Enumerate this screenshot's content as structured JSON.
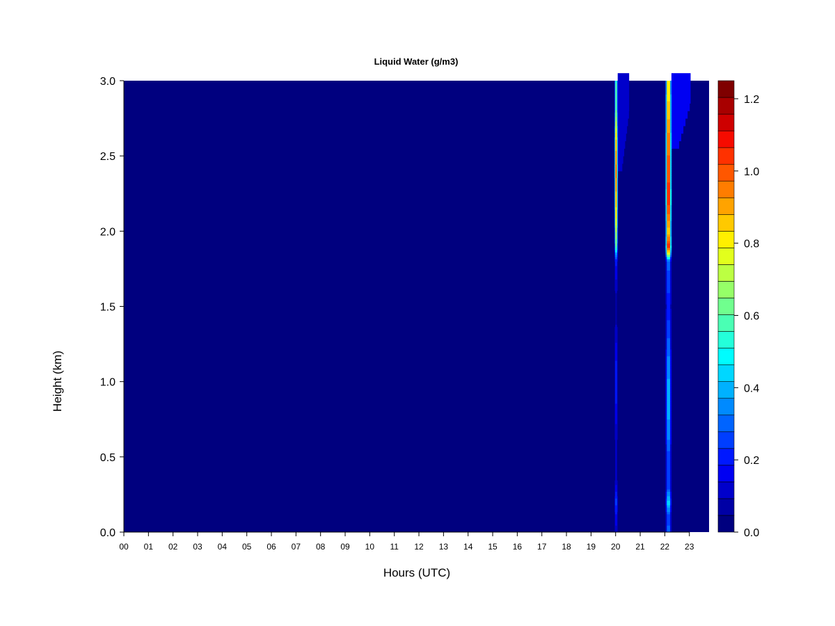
{
  "chart_data": {
    "type": "heatmap",
    "title": "Liquid Water (g/m3)",
    "xlabel": "Hours (UTC)",
    "ylabel": "Height (km)",
    "xlim": [
      0,
      23.8
    ],
    "ylim": [
      0.0,
      3.0
    ],
    "x_ticks": [
      {
        "value": 0,
        "label": "00"
      },
      {
        "value": 1,
        "label": "01"
      },
      {
        "value": 2,
        "label": "02"
      },
      {
        "value": 3,
        "label": "03"
      },
      {
        "value": 4,
        "label": "04"
      },
      {
        "value": 5,
        "label": "05"
      },
      {
        "value": 6,
        "label": "06"
      },
      {
        "value": 7,
        "label": "07"
      },
      {
        "value": 8,
        "label": "08"
      },
      {
        "value": 9,
        "label": "09"
      },
      {
        "value": 10,
        "label": "10"
      },
      {
        "value": 11,
        "label": "11"
      },
      {
        "value": 12,
        "label": "12"
      },
      {
        "value": 13,
        "label": "13"
      },
      {
        "value": 14,
        "label": "14"
      },
      {
        "value": 15,
        "label": "15"
      },
      {
        "value": 16,
        "label": "16"
      },
      {
        "value": 17,
        "label": "17"
      },
      {
        "value": 18,
        "label": "18"
      },
      {
        "value": 19,
        "label": "19"
      },
      {
        "value": 20,
        "label": "20"
      },
      {
        "value": 21,
        "label": "21"
      },
      {
        "value": 22,
        "label": "22"
      },
      {
        "value": 23,
        "label": "23"
      }
    ],
    "y_ticks": [
      {
        "value": 0.0,
        "label": "0.0"
      },
      {
        "value": 0.5,
        "label": "0.5"
      },
      {
        "value": 1.0,
        "label": "1.0"
      },
      {
        "value": 1.5,
        "label": "1.5"
      },
      {
        "value": 2.0,
        "label": "2.0"
      },
      {
        "value": 2.5,
        "label": "2.5"
      },
      {
        "value": 3.0,
        "label": "3.0"
      }
    ],
    "colorbar": {
      "min": 0.0,
      "max": 1.25,
      "step": 0.05,
      "ticks": [
        {
          "value": 0.0,
          "label": "0.0"
        },
        {
          "value": 0.2,
          "label": "0.2"
        },
        {
          "value": 0.4,
          "label": "0.4"
        },
        {
          "value": 0.6,
          "label": "0.6"
        },
        {
          "value": 0.8,
          "label": "0.8"
        },
        {
          "value": 1.0,
          "label": "1.0"
        },
        {
          "value": 1.2,
          "label": "1.2"
        }
      ],
      "colors": [
        "#00007f",
        "#0000a5",
        "#0000cb",
        "#0000f2",
        "#0018ff",
        "#003eff",
        "#0064ff",
        "#008aff",
        "#00b1ff",
        "#00d7ff",
        "#00fdfe",
        "#24ffda",
        "#4affb4",
        "#70ff8e",
        "#96ff68",
        "#bcff42",
        "#e2ff1c",
        "#ffef00",
        "#ffc900",
        "#ffa300",
        "#ff7d00",
        "#ff5700",
        "#ff3100",
        "#f60b00",
        "#ce0000",
        "#a80000",
        "#7f0000"
      ]
    },
    "background_value": 0.0,
    "features": [
      {
        "name": "cloud band near 20 UTC",
        "x_center": 20.02,
        "width_hours": 0.13,
        "profile": [
          {
            "height": 0.0,
            "value": 0.1
          },
          {
            "height": 0.2,
            "value": 0.25
          },
          {
            "height": 0.35,
            "value": 0.1
          },
          {
            "height": 0.6,
            "value": 0.1
          },
          {
            "height": 0.9,
            "value": 0.2
          },
          {
            "height": 1.1,
            "value": 0.2
          },
          {
            "height": 1.5,
            "value": 0.05
          },
          {
            "height": 1.8,
            "value": 0.2
          },
          {
            "height": 1.9,
            "value": 0.6
          },
          {
            "height": 2.1,
            "value": 0.8
          },
          {
            "height": 2.4,
            "value": 0.95
          },
          {
            "height": 2.6,
            "value": 0.85
          },
          {
            "height": 2.8,
            "value": 0.6
          },
          {
            "height": 3.0,
            "value": 0.55
          }
        ],
        "halo": {
          "x_end": 20.55,
          "height_min": 2.4,
          "value": 0.12
        }
      },
      {
        "name": "cloud band near 22 UTC",
        "x_center": 22.15,
        "width_hours": 0.24,
        "profile": [
          {
            "height": 0.0,
            "value": 0.3
          },
          {
            "height": 0.1,
            "value": 0.25
          },
          {
            "height": 0.2,
            "value": 0.45
          },
          {
            "height": 0.3,
            "value": 0.25
          },
          {
            "height": 0.5,
            "value": 0.25
          },
          {
            "height": 0.65,
            "value": 0.35
          },
          {
            "height": 0.9,
            "value": 0.4
          },
          {
            "height": 1.1,
            "value": 0.35
          },
          {
            "height": 1.5,
            "value": 0.2
          },
          {
            "height": 1.8,
            "value": 0.3
          },
          {
            "height": 1.85,
            "value": 0.75
          },
          {
            "height": 1.9,
            "value": 1.05
          },
          {
            "height": 2.0,
            "value": 0.85
          },
          {
            "height": 2.2,
            "value": 1.05
          },
          {
            "height": 2.4,
            "value": 1.0
          },
          {
            "height": 2.6,
            "value": 0.95
          },
          {
            "height": 2.8,
            "value": 0.85
          },
          {
            "height": 3.0,
            "value": 0.8
          }
        ],
        "halo": {
          "x_end": 23.05,
          "height_min": 2.55,
          "value": 0.15
        }
      }
    ]
  }
}
